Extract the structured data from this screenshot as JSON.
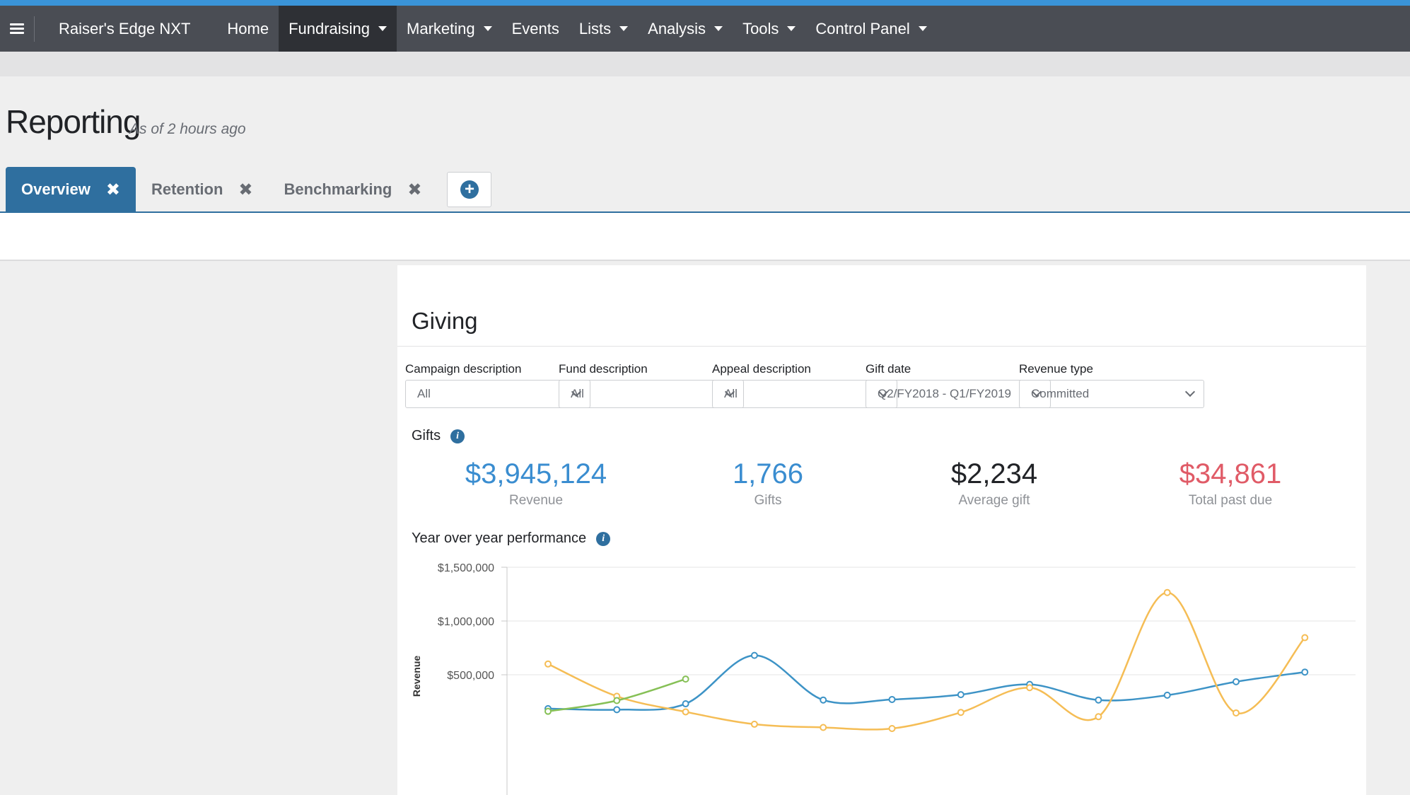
{
  "nav": {
    "brand": "Raiser's Edge NXT",
    "items": [
      {
        "label": "Home",
        "dropdown": false,
        "active": false
      },
      {
        "label": "Fundraising",
        "dropdown": true,
        "active": true
      },
      {
        "label": "Marketing",
        "dropdown": true,
        "active": false
      },
      {
        "label": "Events",
        "dropdown": false,
        "active": false
      },
      {
        "label": "Lists",
        "dropdown": true,
        "active": false
      },
      {
        "label": "Analysis",
        "dropdown": true,
        "active": false
      },
      {
        "label": "Tools",
        "dropdown": true,
        "active": false
      },
      {
        "label": "Control Panel",
        "dropdown": true,
        "active": false
      }
    ]
  },
  "page": {
    "title": "Reporting",
    "subtitle": "As of 2 hours ago"
  },
  "tabs": [
    {
      "label": "Overview",
      "active": true,
      "close": "✖"
    },
    {
      "label": "Retention",
      "active": false,
      "close": "✖"
    },
    {
      "label": "Benchmarking",
      "active": false,
      "close": "✖"
    }
  ],
  "add_tab_icon": "+",
  "giving": {
    "title": "Giving",
    "filters": [
      {
        "label": "Campaign description",
        "value": "All"
      },
      {
        "label": "Fund description",
        "value": "All"
      },
      {
        "label": "Appeal description",
        "value": "All"
      },
      {
        "label": "Gift date",
        "value": "Q2/FY2018 - Q1/FY2019"
      },
      {
        "label": "Revenue type",
        "value": "Committed"
      }
    ],
    "gifts_label": "Gifts",
    "info_icon": "i",
    "stats": [
      {
        "value": "$3,945,124",
        "label": "Revenue",
        "color": "#3a8dd0"
      },
      {
        "value": "1,766",
        "label": "Gifts",
        "color": "#3a8dd0"
      },
      {
        "value": "$2,234",
        "label": "Average gift",
        "color": "#212327"
      },
      {
        "value": "$34,861",
        "label": "Total past due",
        "color": "#e05b67"
      }
    ],
    "yoy_label": "Year over year performance"
  },
  "colors": {
    "accent": "#3a94d8",
    "navbar": "#4a4d54",
    "tab_active": "#2f6f9f",
    "series_blue": "#3d93c6",
    "series_orange": "#f5bd55",
    "series_green": "#86c056"
  },
  "chart_data": {
    "type": "line",
    "ylabel": "Revenue",
    "yticks": [
      "$1,500,000",
      "$1,000,000",
      "$500,000"
    ],
    "ylim": [
      0,
      1500000
    ],
    "grid": true,
    "series": [
      {
        "color": "#3d93c6",
        "values": [
          185000,
          175000,
          230000,
          680000,
          265000,
          270000,
          315000,
          410000,
          265000,
          310000,
          435000,
          525000
        ]
      },
      {
        "color": "#f5bd55",
        "values": [
          600000,
          300000,
          155000,
          40000,
          10000,
          0,
          150000,
          380000,
          110000,
          1265000,
          145000,
          845000
        ]
      },
      {
        "color": "#86c056",
        "values": [
          160000,
          260000,
          460000
        ]
      }
    ]
  }
}
